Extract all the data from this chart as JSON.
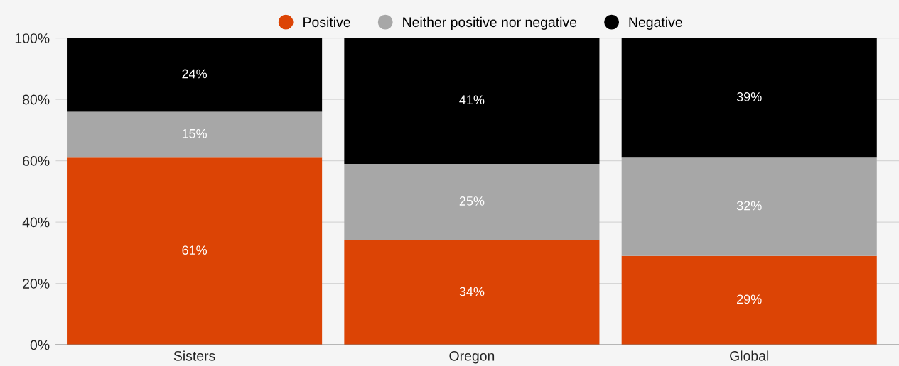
{
  "chart_data": {
    "type": "bar",
    "stacked": true,
    "categories": [
      "Sisters",
      "Oregon",
      "Global"
    ],
    "series": [
      {
        "name": "Positive",
        "color": "#dc4405",
        "values": [
          61,
          34,
          29
        ],
        "value_labels": [
          "61%",
          "34%",
          "29%"
        ]
      },
      {
        "name": "Neither positive nor negative",
        "color": "#a7a7a7",
        "values": [
          15,
          25,
          32
        ],
        "value_labels": [
          "15%",
          "25%",
          "32%"
        ]
      },
      {
        "name": "Negative",
        "color": "#000000",
        "values": [
          24,
          41,
          39
        ],
        "value_labels": [
          "24%",
          "41%",
          "39%"
        ]
      }
    ],
    "ylim": [
      0,
      100
    ],
    "yticks": [
      {
        "value": 0,
        "label": "0%"
      },
      {
        "value": 20,
        "label": "20%"
      },
      {
        "value": 40,
        "label": "40%"
      },
      {
        "value": 60,
        "label": "60%"
      },
      {
        "value": 80,
        "label": "80%"
      },
      {
        "value": 100,
        "label": "100%"
      }
    ],
    "grid": "y",
    "legend": "top"
  }
}
